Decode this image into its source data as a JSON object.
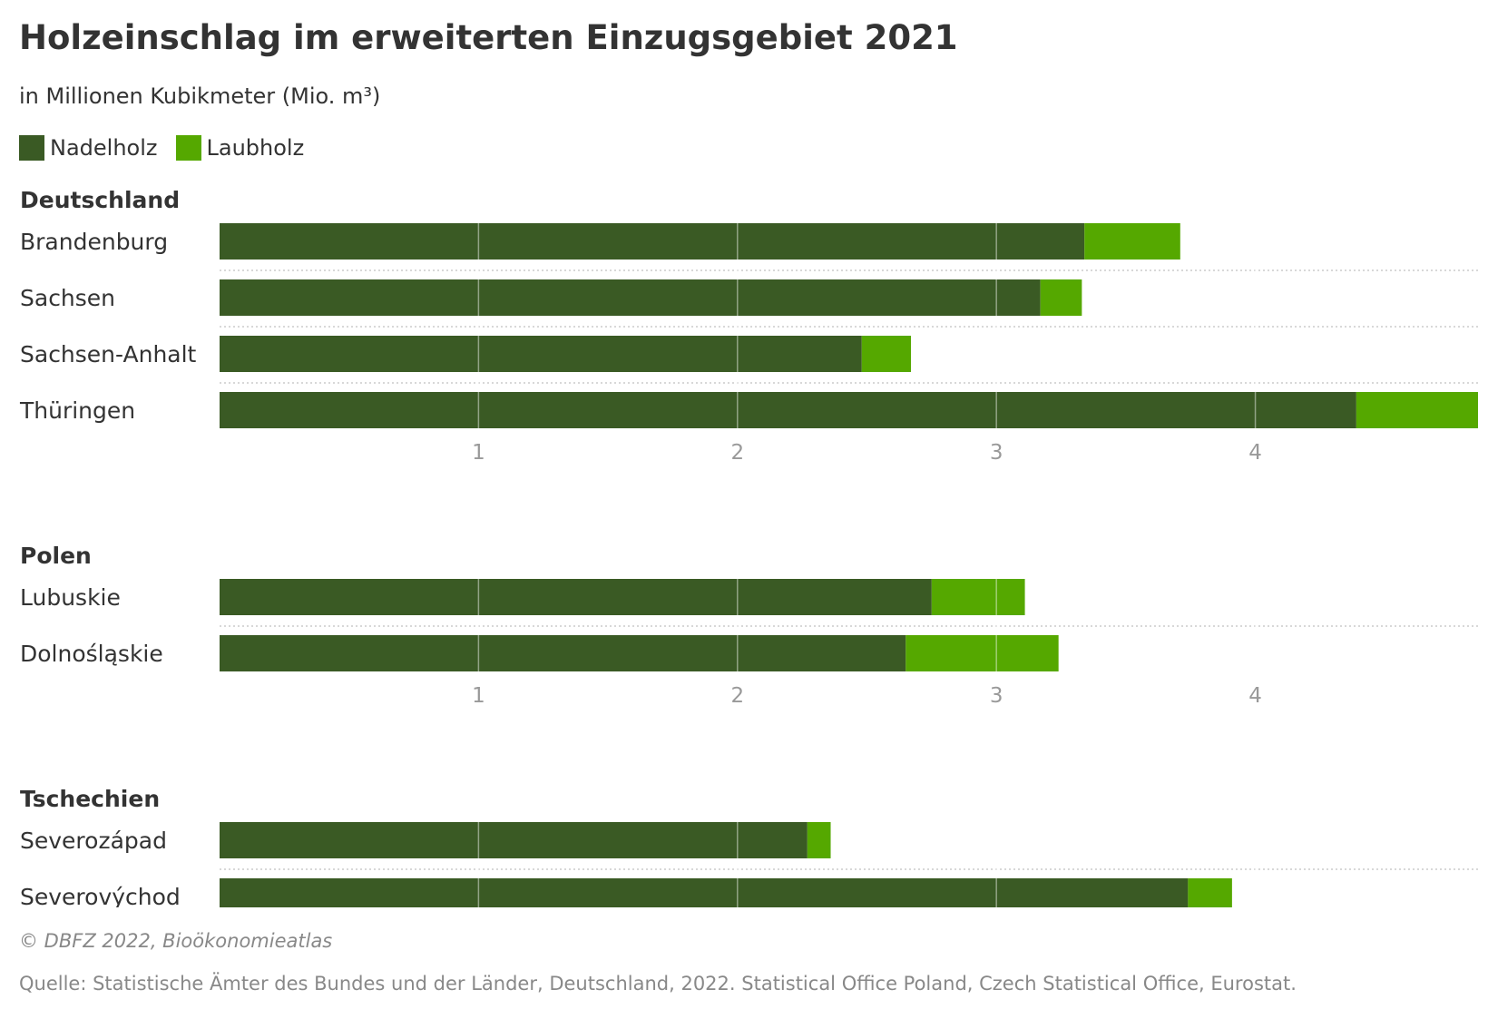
{
  "header": {
    "title": "Holzeinschlag im erweiterten Einzugsgebiet 2021",
    "subtitle": "in Millionen Kubikmeter (Mio. m³)"
  },
  "legend": [
    {
      "label": "Nadelholz",
      "color": "#3a5a24"
    },
    {
      "label": "Laubholz",
      "color": "#55a800"
    }
  ],
  "footer": {
    "copyright": "© DBFZ 2022, Bioökonomieatlas",
    "source": "Quelle: Statistische Ämter des Bundes und der Länder, Deutschland, 2022. Statistical Office Poland, Czech Statistical Office, Eurostat."
  },
  "chart_data": {
    "type": "bar",
    "orientation": "horizontal",
    "stacked": true,
    "title": "Holzeinschlag im erweiterten Einzugsgebiet 2021",
    "subtitle": "in Millionen Kubikmeter (Mio. m³)",
    "xlim": [
      0,
      4.86
    ],
    "ticks": [
      1,
      2,
      3,
      4
    ],
    "grid": true,
    "legend_position": "top-left",
    "series_names": [
      "Nadelholz",
      "Laubholz"
    ],
    "colors": {
      "Nadelholz": "#3a5a24",
      "Laubholz": "#55a800"
    },
    "groups": [
      {
        "name": "Deutschland",
        "rows": [
          {
            "label": "Brandenburg",
            "Nadelholz": 3.34,
            "Laubholz": 0.37
          },
          {
            "label": "Sachsen",
            "Nadelholz": 3.17,
            "Laubholz": 0.16
          },
          {
            "label": "Sachsen-Anhalt",
            "Nadelholz": 2.48,
            "Laubholz": 0.19
          },
          {
            "label": "Thüringen",
            "Nadelholz": 4.39,
            "Laubholz": 0.47
          }
        ]
      },
      {
        "name": "Polen",
        "rows": [
          {
            "label": "Lubuskie",
            "Nadelholz": 2.75,
            "Laubholz": 0.36
          },
          {
            "label": "Dolnośląskie",
            "Nadelholz": 2.65,
            "Laubholz": 0.59
          }
        ]
      },
      {
        "name": "Tschechien",
        "rows": [
          {
            "label": "Severozápad",
            "Nadelholz": 2.27,
            "Laubholz": 0.09
          },
          {
            "label": "Severovýchod",
            "Nadelholz": 3.74,
            "Laubholz": 0.17
          }
        ]
      }
    ]
  }
}
